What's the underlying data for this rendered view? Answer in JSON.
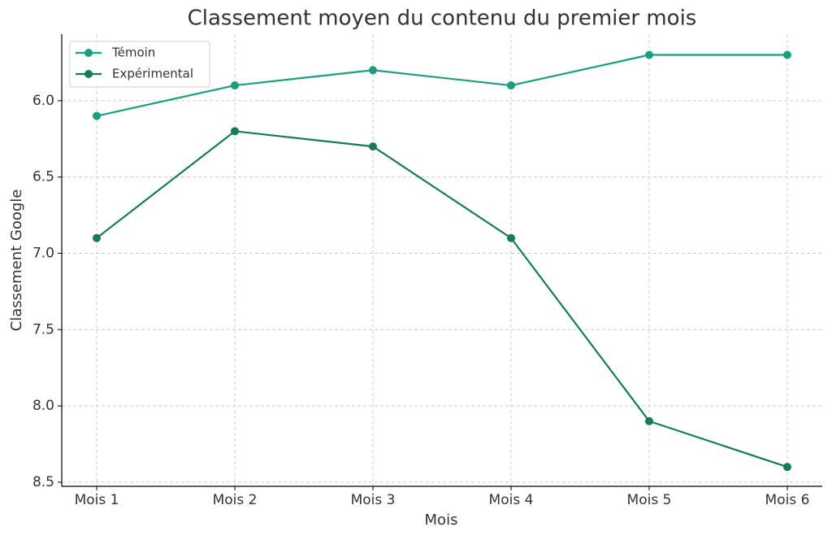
{
  "chart_data": {
    "type": "line",
    "title": "Classement moyen du contenu du premier mois",
    "x_label": "Mois",
    "y_label": "Classement Google",
    "categories": [
      "Mois 1",
      "Mois 2",
      "Mois 3",
      "Mois 4",
      "Mois 5",
      "Mois 6"
    ],
    "series": [
      {
        "name": "Témoin",
        "color": "#1a9e80",
        "values": [
          6.1,
          5.9,
          5.8,
          5.9,
          5.7,
          5.7
        ]
      },
      {
        "name": "Expérimental",
        "color": "#177a5c",
        "values": [
          6.9,
          6.2,
          6.3,
          6.9,
          8.1,
          8.4
        ]
      }
    ],
    "ylim": [
      5.564,
      8.527
    ],
    "y_inverted": true,
    "yticks": [
      {
        "value": 6,
        "label": "6.0"
      },
      6.5,
      {
        "value": 7,
        "label": "7.0"
      },
      7.5,
      {
        "value": 8,
        "label": "8.0"
      },
      8.5
    ],
    "grid": true,
    "legend": "upper left"
  }
}
